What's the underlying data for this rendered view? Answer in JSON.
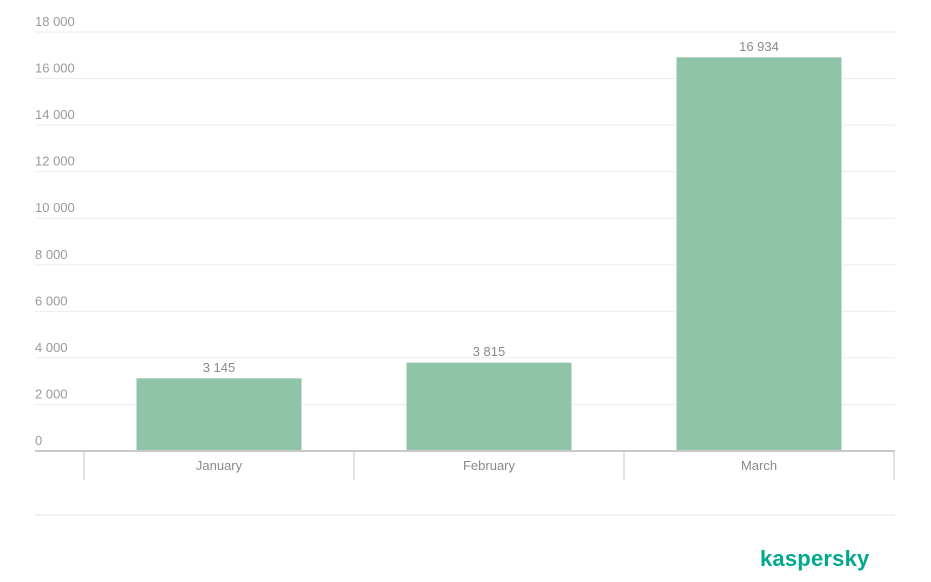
{
  "chart_data": {
    "type": "bar",
    "categories": [
      "January",
      "February",
      "March"
    ],
    "values": [
      3145,
      3815,
      16934
    ],
    "value_labels": [
      "3 145",
      "3 815",
      "16 934"
    ],
    "ylim": [
      0,
      18000
    ],
    "yticks": [
      0,
      2000,
      4000,
      6000,
      8000,
      10000,
      12000,
      14000,
      16000,
      18000
    ],
    "ytick_labels": [
      "0",
      "2 000",
      "4 000",
      "6 000",
      "8 000",
      "10 000",
      "12 000",
      "14 000",
      "16 000",
      "18 000"
    ],
    "grid": true,
    "bar_color": "#8fc4a8"
  },
  "brand": {
    "logo_text": "kaspersky",
    "color": "#00a88e"
  }
}
